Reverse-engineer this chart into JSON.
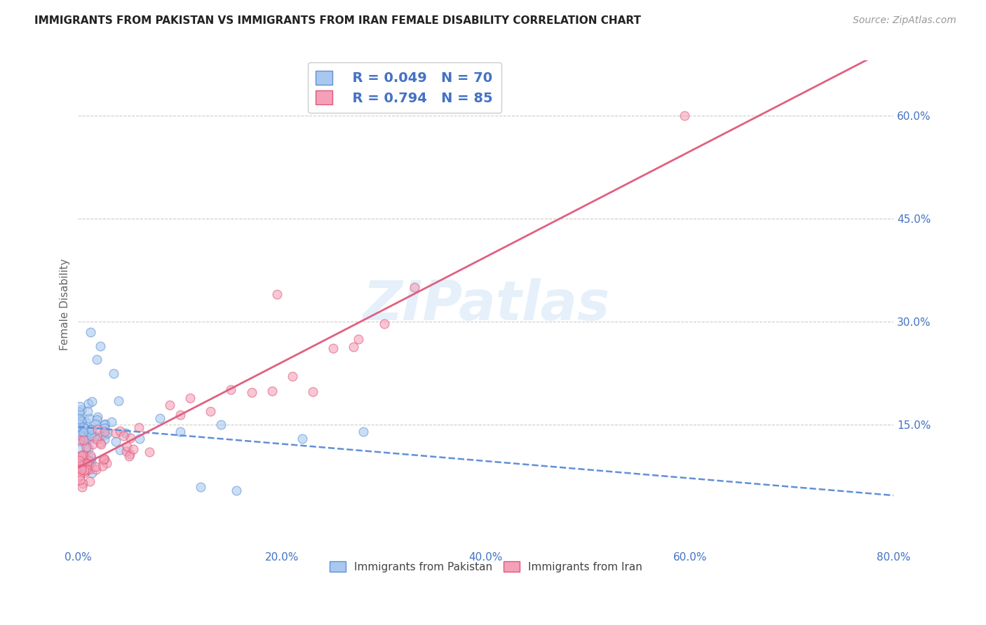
{
  "title": "IMMIGRANTS FROM PAKISTAN VS IMMIGRANTS FROM IRAN FEMALE DISABILITY CORRELATION CHART",
  "source": "Source: ZipAtlas.com",
  "ylabel": "Female Disability",
  "xlim": [
    0.0,
    0.8
  ],
  "ylim": [
    -0.03,
    0.68
  ],
  "xticks": [
    0.0,
    0.2,
    0.4,
    0.6,
    0.8
  ],
  "yticks": [
    0.15,
    0.3,
    0.45,
    0.6
  ],
  "xtick_labels": [
    "0.0%",
    "20.0%",
    "40.0%",
    "60.0%",
    "80.0%"
  ],
  "ytick_labels": [
    "15.0%",
    "30.0%",
    "45.0%",
    "60.0%"
  ],
  "legend_label1": "Immigrants from Pakistan",
  "legend_label2": "Immigrants from Iran",
  "R1": "0.049",
  "N1": "70",
  "R2": "0.794",
  "N2": "85",
  "color_pakistan": "#a8c8f0",
  "color_iran": "#f4a0b8",
  "color_pakistan_edge": "#6090d0",
  "color_iran_edge": "#e05878",
  "color_text_blue": "#4472c4",
  "color_trend_pakistan": "#6090d8",
  "color_trend_iran": "#e06080",
  "background_color": "#ffffff",
  "watermark": "ZIPatlas",
  "title_fontsize": 11,
  "source_fontsize": 10,
  "tick_fontsize": 11,
  "legend_fontsize": 14,
  "ylabel_fontsize": 11
}
